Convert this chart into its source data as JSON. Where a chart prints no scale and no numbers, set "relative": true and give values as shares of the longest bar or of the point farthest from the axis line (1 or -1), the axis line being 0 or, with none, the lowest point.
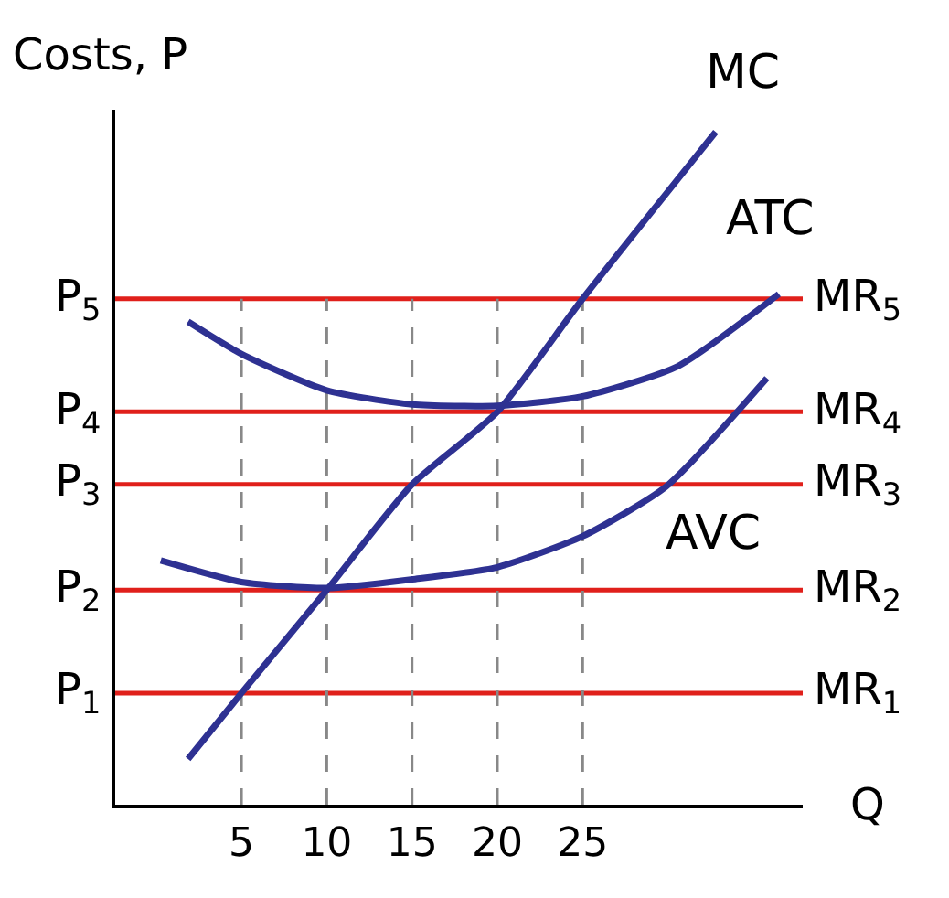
{
  "chart_data": {
    "type": "line",
    "relative": true,
    "ylabel": "Costs, P",
    "xlabel": "Q",
    "xlim": [
      -2.4,
      37.9
    ],
    "xticks": [
      5,
      10,
      15,
      20,
      25
    ],
    "series": [
      {
        "name": "MC",
        "color": "#2e3192",
        "x": [
          1.87,
          5,
          10,
          15,
          20,
          25,
          32.8
        ],
        "values": [
          0.068,
          0.166,
          0.319,
          0.476,
          0.584,
          0.752,
          1.0
        ]
      },
      {
        "name": "ATC",
        "color": "#2e3192",
        "x": [
          1.87,
          5,
          10,
          15,
          20,
          25,
          30.6,
          36.5
        ],
        "values": [
          0.718,
          0.67,
          0.616,
          0.595,
          0.593,
          0.607,
          0.652,
          0.759
        ]
      },
      {
        "name": "AVC",
        "color": "#2e3192",
        "x": [
          0.27,
          5,
          10,
          15,
          20,
          25,
          29.9,
          35.8
        ],
        "values": [
          0.363,
          0.331,
          0.322,
          0.335,
          0.353,
          0.399,
          0.473,
          0.634
        ]
      }
    ],
    "ref_lines": [
      {
        "axis": "y",
        "value": 0.752,
        "label": "MR$_{5}$",
        "color": "#e0201b"
      },
      {
        "axis": "y",
        "value": 0.584,
        "label": "MR$_{4}$",
        "color": "#e0201b"
      },
      {
        "axis": "y",
        "value": 0.476,
        "label": "MR$_{3}$",
        "color": "#e0201b"
      },
      {
        "axis": "y",
        "value": 0.319,
        "label": "MR$_{2}$",
        "color": "#e0201b"
      },
      {
        "axis": "y",
        "value": 0.166,
        "label": "MR$_{1}$",
        "color": "#e0201b"
      },
      {
        "axis": "x",
        "value": 5,
        "color": "#888888",
        "line_style": "dashed"
      },
      {
        "axis": "x",
        "value": 10,
        "color": "#888888",
        "line_style": "dashed"
      },
      {
        "axis": "x",
        "value": 15,
        "color": "#888888",
        "line_style": "dashed"
      },
      {
        "axis": "x",
        "value": 20,
        "color": "#888888",
        "line_style": "dashed"
      },
      {
        "axis": "x",
        "value": 25,
        "color": "#888888",
        "line_style": "dashed"
      }
    ],
    "annotations": [
      "P$_{5}$",
      "P$_{4}$",
      "P$_{3}$",
      "P$_{2}$",
      "P$_{1}$"
    ],
    "legend": false,
    "grid": false,
    "line_style": "solid",
    "marker": "none"
  }
}
